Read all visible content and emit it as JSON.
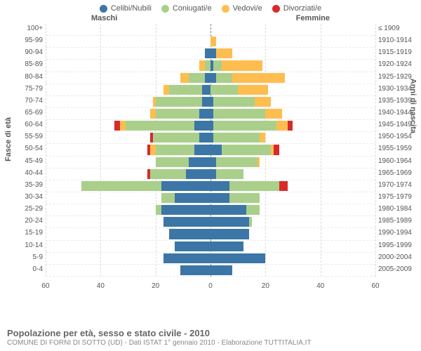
{
  "chart": {
    "type": "population-pyramid",
    "background_color": "#ffffff",
    "grid_color": "#d9d9d9",
    "center_line_color": "#808080",
    "text_color": "#555555",
    "x_max": 60,
    "x_tick_step": 20,
    "x_ticks": [
      "60",
      "40",
      "20",
      "0",
      "20",
      "40",
      "60"
    ],
    "y_title_left": "Fasce di età",
    "y_title_right": "Anni di nascita",
    "header_left": "Maschi",
    "header_right": "Femmine",
    "footer_title": "Popolazione per età, sesso e stato civile - 2010",
    "footer_sub": "COMUNE DI FORNI DI SOTTO (UD) - Dati ISTAT 1° gennaio 2010 - Elaborazione TUTTITALIA.IT",
    "legend": [
      {
        "label": "Celibi/Nubili",
        "key": "single"
      },
      {
        "label": "Coniugati/e",
        "key": "married"
      },
      {
        "label": "Vedovi/e",
        "key": "widow"
      },
      {
        "label": "Divorziati/e",
        "key": "divorced"
      }
    ],
    "colors": {
      "single": "#3b76a6",
      "married": "#a9cf8b",
      "widow": "#fdbe4f",
      "divorced": "#d9292b"
    },
    "rows": [
      {
        "age": "100+",
        "birth": "≤ 1909",
        "m": {
          "single": 0,
          "married": 0,
          "widow": 0,
          "divorced": 0
        },
        "f": {
          "single": 0,
          "married": 0,
          "widow": 0,
          "divorced": 0
        }
      },
      {
        "age": "95-99",
        "birth": "1910-1914",
        "m": {
          "single": 0,
          "married": 0,
          "widow": 0,
          "divorced": 0
        },
        "f": {
          "single": 0,
          "married": 0,
          "widow": 2,
          "divorced": 0
        }
      },
      {
        "age": "90-94",
        "birth": "1915-1919",
        "m": {
          "single": 2,
          "married": 0,
          "widow": 0,
          "divorced": 0
        },
        "f": {
          "single": 2,
          "married": 0,
          "widow": 6,
          "divorced": 0
        }
      },
      {
        "age": "85-89",
        "birth": "1920-1924",
        "m": {
          "single": 0,
          "married": 2,
          "widow": 2,
          "divorced": 0
        },
        "f": {
          "single": 1,
          "married": 3,
          "widow": 15,
          "divorced": 0
        }
      },
      {
        "age": "80-84",
        "birth": "1925-1929",
        "m": {
          "single": 2,
          "married": 6,
          "widow": 3,
          "divorced": 0
        },
        "f": {
          "single": 2,
          "married": 6,
          "widow": 19,
          "divorced": 0
        }
      },
      {
        "age": "75-79",
        "birth": "1930-1934",
        "m": {
          "single": 3,
          "married": 12,
          "widow": 2,
          "divorced": 0
        },
        "f": {
          "single": 0,
          "married": 10,
          "widow": 11,
          "divorced": 0
        }
      },
      {
        "age": "70-74",
        "birth": "1935-1939",
        "m": {
          "single": 3,
          "married": 17,
          "widow": 1,
          "divorced": 0
        },
        "f": {
          "single": 1,
          "married": 15,
          "widow": 6,
          "divorced": 0
        }
      },
      {
        "age": "65-69",
        "birth": "1940-1944",
        "m": {
          "single": 4,
          "married": 16,
          "widow": 2,
          "divorced": 0
        },
        "f": {
          "single": 1,
          "married": 19,
          "widow": 6,
          "divorced": 0
        }
      },
      {
        "age": "60-64",
        "birth": "1945-1949",
        "m": {
          "single": 6,
          "married": 25,
          "widow": 2,
          "divorced": 2
        },
        "f": {
          "single": 1,
          "married": 23,
          "widow": 4,
          "divorced": 2
        }
      },
      {
        "age": "55-59",
        "birth": "1950-1954",
        "m": {
          "single": 4,
          "married": 17,
          "widow": 0,
          "divorced": 1
        },
        "f": {
          "single": 1,
          "married": 17,
          "widow": 2,
          "divorced": 0
        }
      },
      {
        "age": "50-54",
        "birth": "1955-1959",
        "m": {
          "single": 6,
          "married": 14,
          "widow": 2,
          "divorced": 1
        },
        "f": {
          "single": 4,
          "married": 18,
          "widow": 1,
          "divorced": 2
        }
      },
      {
        "age": "45-49",
        "birth": "1960-1964",
        "m": {
          "single": 8,
          "married": 12,
          "widow": 0,
          "divorced": 0
        },
        "f": {
          "single": 2,
          "married": 15,
          "widow": 1,
          "divorced": 0
        }
      },
      {
        "age": "40-44",
        "birth": "1965-1969",
        "m": {
          "single": 9,
          "married": 13,
          "widow": 0,
          "divorced": 1
        },
        "f": {
          "single": 2,
          "married": 10,
          "widow": 0,
          "divorced": 0
        }
      },
      {
        "age": "35-39",
        "birth": "1970-1974",
        "m": {
          "single": 18,
          "married": 29,
          "widow": 0,
          "divorced": 0
        },
        "f": {
          "single": 7,
          "married": 18,
          "widow": 0,
          "divorced": 3
        }
      },
      {
        "age": "30-34",
        "birth": "1975-1979",
        "m": {
          "single": 13,
          "married": 5,
          "widow": 0,
          "divorced": 0
        },
        "f": {
          "single": 7,
          "married": 11,
          "widow": 0,
          "divorced": 0
        }
      },
      {
        "age": "25-29",
        "birth": "1980-1984",
        "m": {
          "single": 18,
          "married": 2,
          "widow": 0,
          "divorced": 0
        },
        "f": {
          "single": 13,
          "married": 5,
          "widow": 0,
          "divorced": 0
        }
      },
      {
        "age": "20-24",
        "birth": "1985-1989",
        "m": {
          "single": 17,
          "married": 0,
          "widow": 0,
          "divorced": 0
        },
        "f": {
          "single": 14,
          "married": 1,
          "widow": 0,
          "divorced": 0
        }
      },
      {
        "age": "15-19",
        "birth": "1990-1994",
        "m": {
          "single": 15,
          "married": 0,
          "widow": 0,
          "divorced": 0
        },
        "f": {
          "single": 14,
          "married": 0,
          "widow": 0,
          "divorced": 0
        }
      },
      {
        "age": "10-14",
        "birth": "1995-1999",
        "m": {
          "single": 13,
          "married": 0,
          "widow": 0,
          "divorced": 0
        },
        "f": {
          "single": 12,
          "married": 0,
          "widow": 0,
          "divorced": 0
        }
      },
      {
        "age": "5-9",
        "birth": "2000-2004",
        "m": {
          "single": 17,
          "married": 0,
          "widow": 0,
          "divorced": 0
        },
        "f": {
          "single": 20,
          "married": 0,
          "widow": 0,
          "divorced": 0
        }
      },
      {
        "age": "0-4",
        "birth": "2005-2009",
        "m": {
          "single": 11,
          "married": 0,
          "widow": 0,
          "divorced": 0
        },
        "f": {
          "single": 8,
          "married": 0,
          "widow": 0,
          "divorced": 0
        }
      }
    ]
  }
}
